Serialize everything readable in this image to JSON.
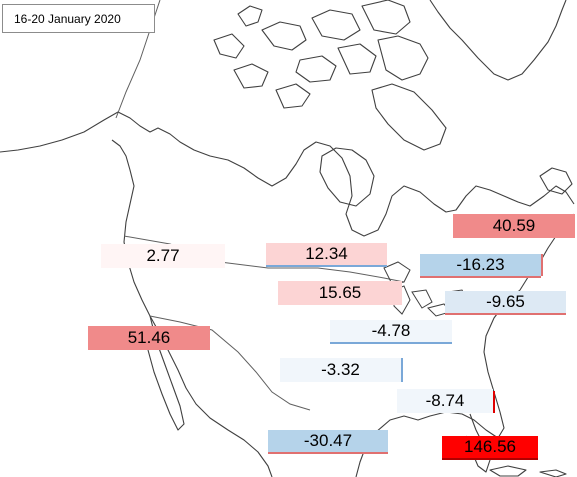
{
  "title": "16-20 January 2020",
  "colors": {
    "strong_red": "#ff0000",
    "mid_red": "#f08a8a",
    "light_red": "#fcd4d4",
    "faint_red": "#fff5f5",
    "light_blue": "#b5d3ea",
    "pale_blue": "#dde9f4",
    "faint_blue": "#f1f6fb"
  },
  "labels": [
    {
      "id": "pacific-northwest",
      "value": "2.77"
    },
    {
      "id": "north-central",
      "value": "12.34"
    },
    {
      "id": "upper-midwest",
      "value": "15.65"
    },
    {
      "id": "west",
      "value": "51.46"
    },
    {
      "id": "northeast",
      "value": "40.59"
    },
    {
      "id": "great-lakes-east",
      "value": "-16.23"
    },
    {
      "id": "mid-atlantic",
      "value": "-9.65"
    },
    {
      "id": "ohio-valley",
      "value": "-4.78"
    },
    {
      "id": "south-central",
      "value": "-3.32"
    },
    {
      "id": "southeast",
      "value": "-8.74"
    },
    {
      "id": "gulf-coast",
      "value": "-30.47"
    },
    {
      "id": "florida",
      "value": "146.56"
    }
  ]
}
